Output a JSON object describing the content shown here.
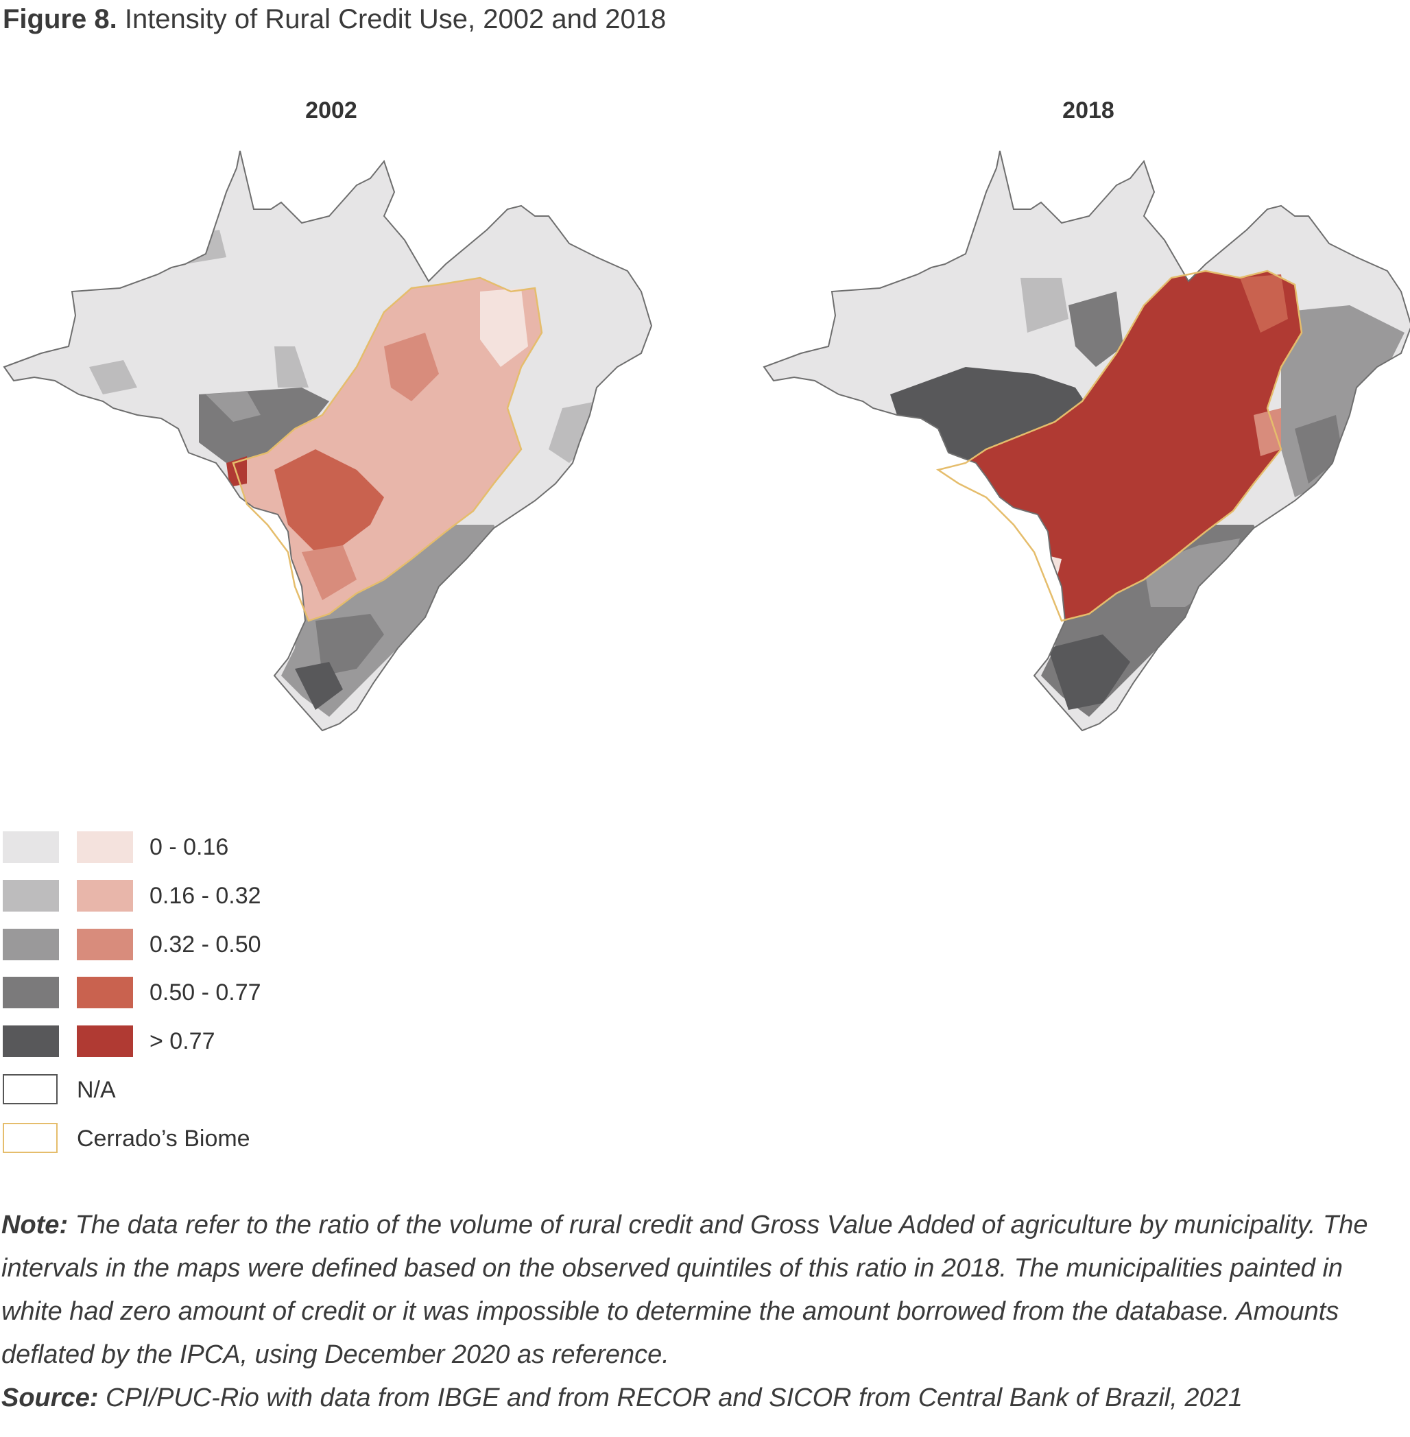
{
  "figure": {
    "label": "Figure 8.",
    "title": "Intensity of Rural Credit Use, 2002 and 2018"
  },
  "maps": [
    {
      "year": "2002"
    },
    {
      "year": "2018"
    }
  ],
  "legend": {
    "classes": [
      {
        "label": "0 - 0.16",
        "grey": "#e6e5e6",
        "red": "#f4e2dd"
      },
      {
        "label": "0.16 - 0.32",
        "grey": "#bdbcbd",
        "red": "#e8b6aa"
      },
      {
        "label": "0.32 - 0.50",
        "grey": "#9a999a",
        "red": "#d88c7c"
      },
      {
        "label": "0.50 - 0.77",
        "grey": "#7b7a7b",
        "red": "#c9624f"
      },
      {
        "label": "> 0.77",
        "grey": "#58585a",
        "red": "#b03a33"
      }
    ],
    "na_label": "N/A",
    "cerrado_label": "Cerrado’s Biome",
    "cerrado_color": "#e5bd6c"
  },
  "note": {
    "label": "Note:",
    "text": "The data refer to the ratio of the volume of rural credit and Gross Value Added of agriculture by municipality. The intervals in the maps were defined based on the observed quintiles of this ratio in 2018. The municipalities painted in white had zero amount of credit or it was impossible to determine the amount borrowed from the database. Amounts deflated by the IPCA, using December 2020 as reference."
  },
  "source": {
    "label": "Source:",
    "text": "CPI/PUC-Rio with data from IBGE and from RECOR and SICOR from Central Bank of Brazil, 2021"
  }
}
